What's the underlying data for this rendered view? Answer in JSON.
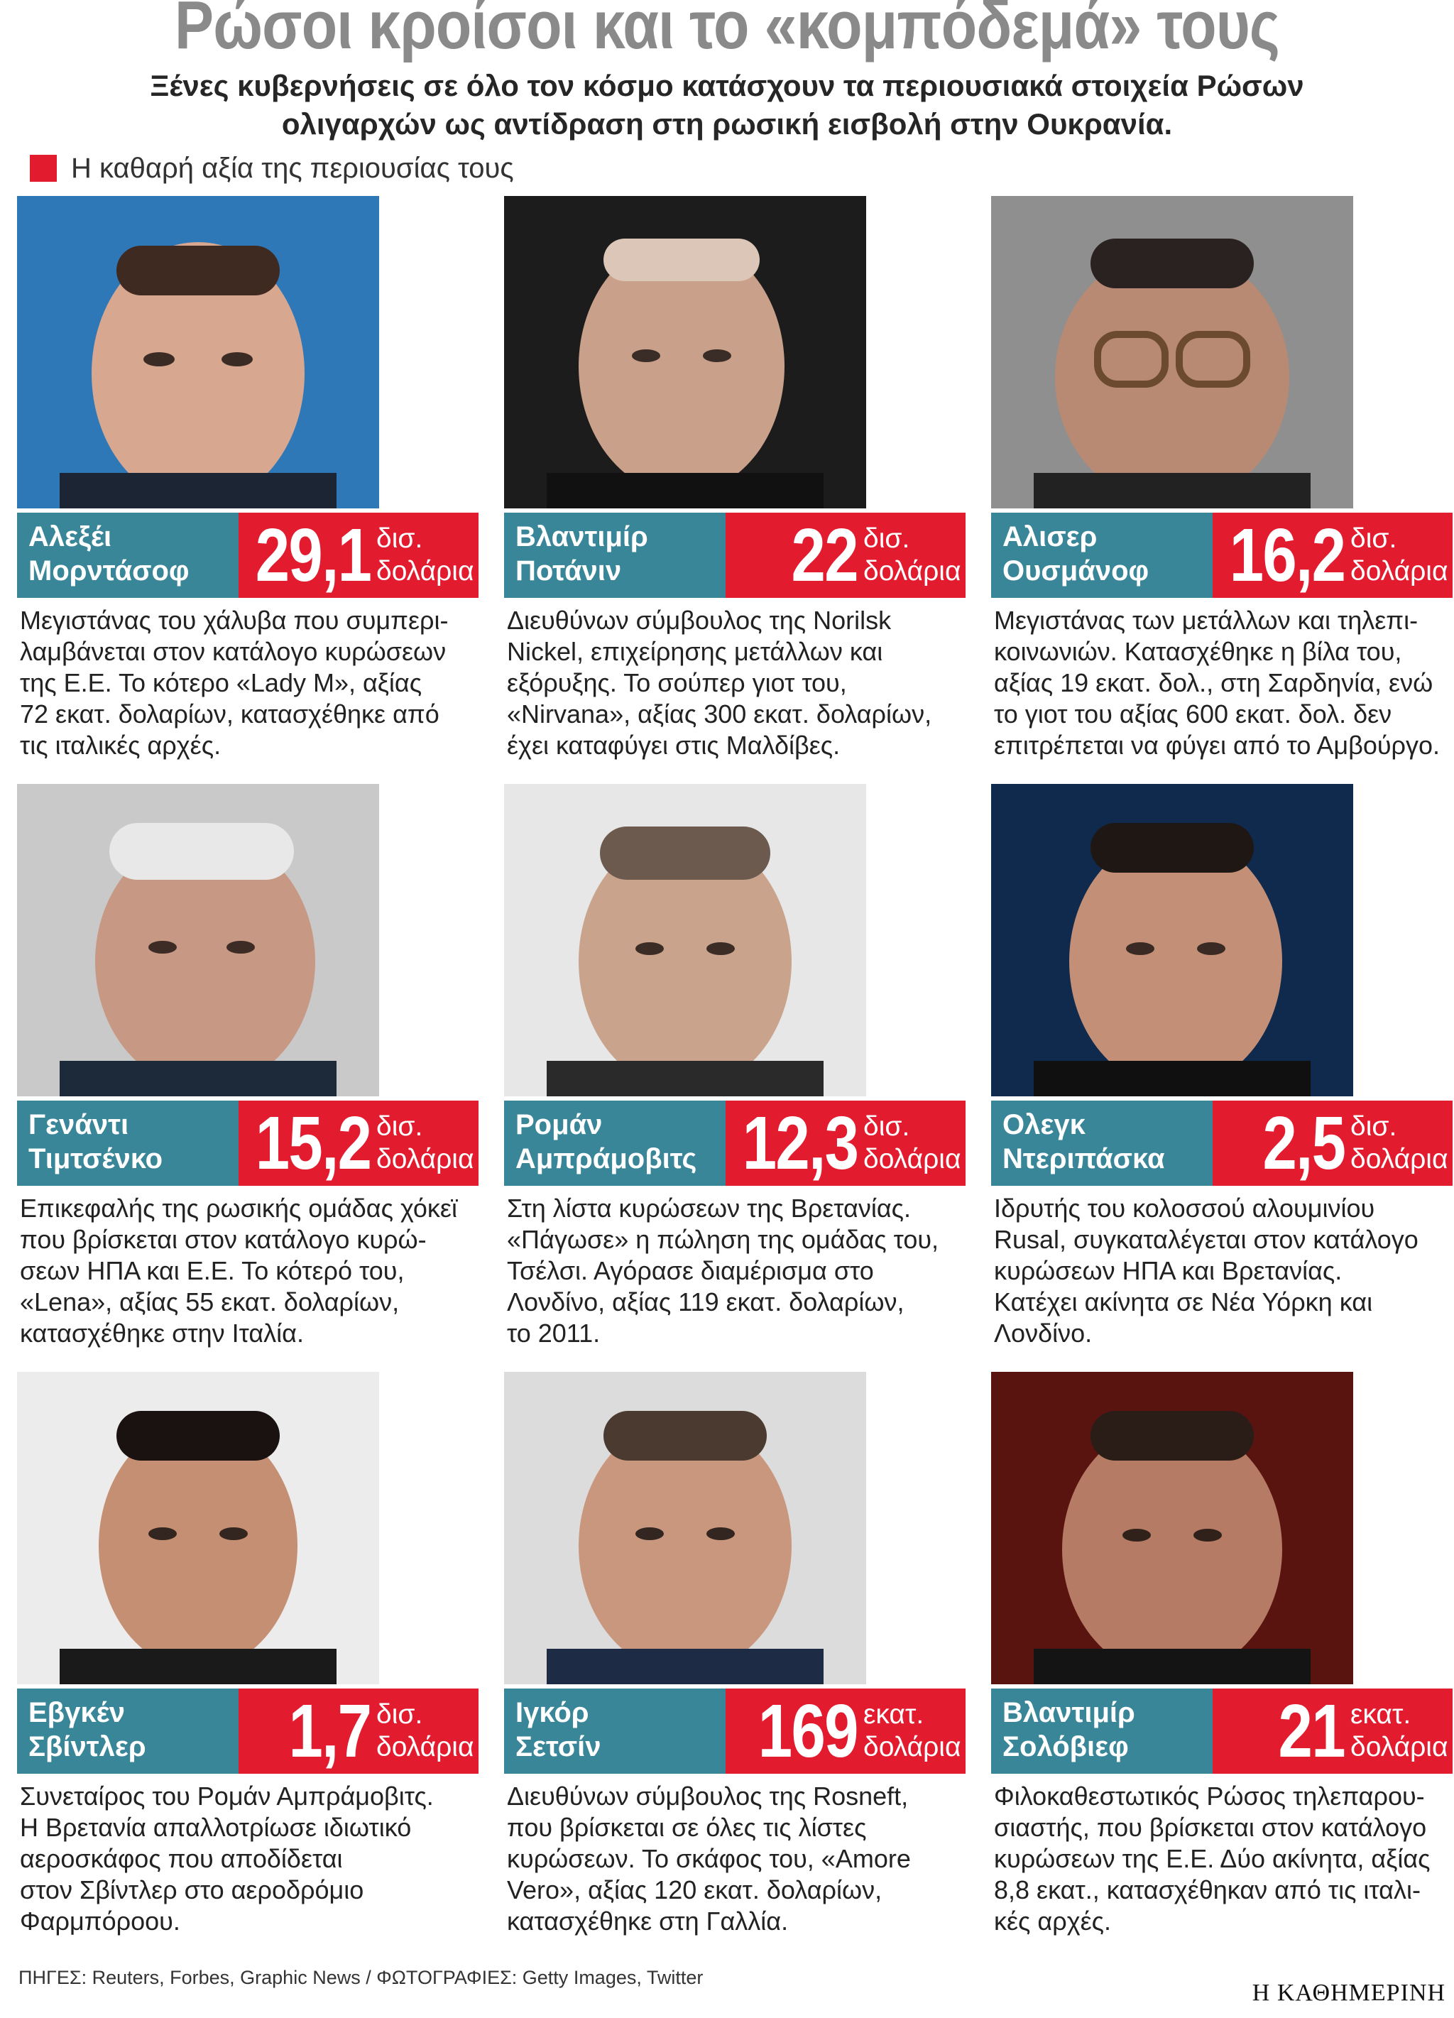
{
  "header": {
    "title": "Ρώσοι κροίσοι και το «κομπόδεμά» τους",
    "subtitle": "Ξένες κυβερνήσεις σε όλο τον κόσμο κατάσχουν τα περιουσιακά στοιχεία Ρώσων ολιγαρχών ως αντίδραση στη ρωσική εισβολή στην Ουκρανία."
  },
  "legend": {
    "label": "Η καθαρή αξία της περιουσίας τους",
    "color": "#e31b2e"
  },
  "colors": {
    "name_bar": "#3a8699",
    "value_box": "#e31b2e"
  },
  "cards": [
    {
      "name": "Αλεξέι\nΜορντάσοφ",
      "value": "29,1",
      "unit": "δισ.\nδολάρια",
      "desc": "Μεγιστάνας του χάλυβα που συμπερι-\nλαμβάνεται στον κατάλογο κυρώσεων\nτης Ε.Ε. Το κότερο «Lady M», αξίας\n72 εκατ. δολαρίων, κατασχέθηκε από\nτις ιταλικές αρχές."
    },
    {
      "name": "Βλαντιμίρ\nΠοτάνιν",
      "value": "22",
      "unit": "δισ.\nδολάρια",
      "desc": "Διευθύνων σύμβουλος της Norilsk\nNickel, επιχείρησης μετάλλων και\nεξόρυξης. Το σούπερ γιοτ του,\n«Nirvana», αξίας 300 εκατ. δολαρίων,\nέχει καταφύγει στις Μαλδίβες."
    },
    {
      "name": "Αλισερ\nΟυσμάνοφ",
      "value": "16,2",
      "unit": "δισ.\nδολάρια",
      "desc": "Μεγιστάνας των μετάλλων και τηλεπι-\nκοινωνιών. Κατασχέθηκε η βίλα του,\nαξίας 19 εκατ. δολ., στη Σαρδηνία, ενώ\nτο γιοτ του αξίας 600 εκατ. δολ. δεν\nεπιτρέπεται να φύγει από το Αμβούργο."
    },
    {
      "name": "Γενάντι\nΤιμτσένκο",
      "value": "15,2",
      "unit": "δισ.\nδολάρια",
      "desc": "Επικεφαλής της ρωσικής ομάδας χόκεϊ\nπου βρίσκεται στον κατάλογο κυρώ-\nσεων ΗΠΑ και Ε.Ε. Το κότερό του,\n«Lena», αξίας 55 εκατ. δολαρίων,\nκατασχέθηκε στην Ιταλία."
    },
    {
      "name": "Ρομάν\nΑμπράμοβιτς",
      "value": "12,3",
      "unit": "δισ.\nδολάρια",
      "desc": "Στη λίστα κυρώσεων της Βρετανίας.\n«Πάγωσε» η πώληση της ομάδας του,\nΤσέλσι. Αγόρασε διαμέρισμα στο\nΛονδίνο, αξίας 119 εκατ. δολαρίων,\nτο 2011."
    },
    {
      "name": "Ολεγκ\nΝτεριπάσκα",
      "value": "2,5",
      "unit": "δισ.\nδολάρια",
      "desc": "Ιδρυτής του κολοσσού αλουμινίου\nRusal, συγκαταλέγεται στον κατάλογο\nκυρώσεων ΗΠΑ και Βρετανίας.\nΚατέχει ακίνητα σε Νέα Υόρκη και\nΛονδίνο."
    },
    {
      "name": "Εβγκέν\nΣβίντλερ",
      "value": "1,7",
      "unit": "δισ.\nδολάρια",
      "desc": "Συνεταίρος του Ρομάν Αμπράμοβιτς.\nΗ Βρετανία απαλλοτρίωσε ιδιωτικό\nαεροσκάφος που αποδίδεται\nστον Σβίντλερ στο αεροδρόμιο\nΦαρμπόροου."
    },
    {
      "name": "Ιγκόρ\nΣετσίν",
      "value": "169",
      "unit": "εκατ.\nδολάρια",
      "desc": "Διευθύνων σύμβουλος της Rosneft,\nπου βρίσκεται σε όλες τις λίστες\nκυρώσεων. Το σκάφος του, «Amore\nVero», αξίας 120 εκατ. δολαρίων,\nκατασχέθηκε στη Γαλλία."
    },
    {
      "name": "Βλαντιμίρ\nΣολόβιεφ",
      "value": "21",
      "unit": "εκατ.\nδολάρια",
      "desc": "Φιλοκαθεστωτικός Ρώσος τηλεπαρου-\nσιαστής, που βρίσκεται στον κατάλογο\nκυρώσεων της Ε.Ε. Δύο ακίνητα, αξίας\n8,8 εκατ., κατασχέθηκαν από τις ιταλι-\nκές αρχές."
    }
  ],
  "footer": {
    "sources": "ΠΗΓΕΣ: Reuters, Forbes, Graphic News / ΦΩΤΟΓΡΑΦΙΕΣ: Getty Images, Twitter",
    "brand": "Η ΚΑΘΗΜΕΡΙΝΗ"
  }
}
